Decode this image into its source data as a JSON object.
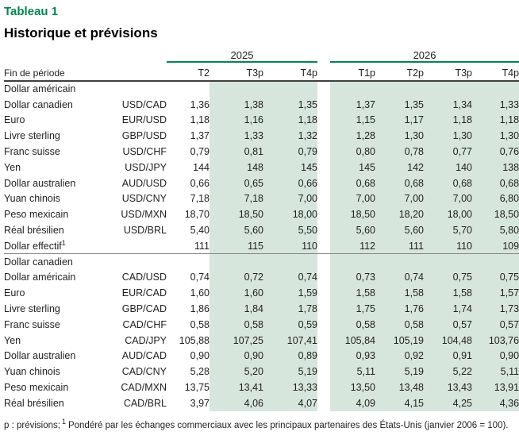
{
  "title": "Tableau 1",
  "subtitle": "Historique et prévisions",
  "table": {
    "corner_label": "Fin de période",
    "year_groups": [
      {
        "label": "2025"
      },
      {
        "label": "2026"
      }
    ],
    "quarter_headers": [
      "T2",
      "T3p",
      "T4p",
      "T1p",
      "T2p",
      "T3p",
      "T4p"
    ],
    "shaded_value_cols": [
      1,
      2,
      3,
      4,
      5,
      6
    ],
    "gap_after_col": 2,
    "sections": [
      {
        "header": "Dollar américain",
        "rows": [
          {
            "label": "Dollar canadien",
            "pair": "USD/CAD",
            "values": [
              "1,36",
              "1,38",
              "1,35",
              "1,37",
              "1,35",
              "1,34",
              "1,33"
            ]
          },
          {
            "label": "Euro",
            "pair": "EUR/USD",
            "values": [
              "1,18",
              "1,16",
              "1,18",
              "1,15",
              "1,17",
              "1,18",
              "1,18"
            ]
          },
          {
            "label": "Livre sterling",
            "pair": "GBP/USD",
            "values": [
              "1,37",
              "1,33",
              "1,32",
              "1,28",
              "1,30",
              "1,30",
              "1,30"
            ]
          },
          {
            "label": "Franc suisse",
            "pair": "USD/CHF",
            "values": [
              "0,79",
              "0,81",
              "0,79",
              "0,80",
              "0,78",
              "0,77",
              "0,76"
            ]
          },
          {
            "label": "Yen",
            "pair": "USD/JPY",
            "values": [
              "144",
              "148",
              "145",
              "145",
              "142",
              "140",
              "138"
            ]
          },
          {
            "label": "Dollar australien",
            "pair": "AUD/USD",
            "values": [
              "0,66",
              "0,65",
              "0,66",
              "0,68",
              "0,68",
              "0,68",
              "0,68"
            ]
          },
          {
            "label": "Yuan chinois",
            "pair": "USD/CNY",
            "values": [
              "7,18",
              "7,18",
              "7,00",
              "7,00",
              "7,00",
              "7,00",
              "6,80"
            ]
          },
          {
            "label": "Peso mexicain",
            "pair": "USD/MXN",
            "values": [
              "18,70",
              "18,50",
              "18,00",
              "18,50",
              "18,20",
              "18,00",
              "18,50"
            ]
          },
          {
            "label": "Réal brésilien",
            "pair": "USD/BRL",
            "values": [
              "5,40",
              "5,60",
              "5,50",
              "5,60",
              "5,60",
              "5,70",
              "5,80"
            ]
          },
          {
            "label": "Dollar effectif",
            "sup": "1",
            "pair": "",
            "values": [
              "111",
              "115",
              "110",
              "112",
              "111",
              "110",
              "109"
            ]
          }
        ]
      },
      {
        "header": "Dollar canadien",
        "rows": [
          {
            "label": "Dollar américain",
            "pair": "CAD/USD",
            "values": [
              "0,74",
              "0,72",
              "0,74",
              "0,73",
              "0,74",
              "0,75",
              "0,75"
            ]
          },
          {
            "label": "Euro",
            "pair": "EUR/CAD",
            "values": [
              "1,60",
              "1,60",
              "1,59",
              "1,58",
              "1,58",
              "1,58",
              "1,57"
            ]
          },
          {
            "label": "Livre sterling",
            "pair": "GBP/CAD",
            "values": [
              "1,86",
              "1,84",
              "1,78",
              "1,75",
              "1,76",
              "1,74",
              "1,73"
            ]
          },
          {
            "label": "Franc suisse",
            "pair": "CAD/CHF",
            "values": [
              "0,58",
              "0,58",
              "0,59",
              "0,58",
              "0,58",
              "0,57",
              "0,57"
            ]
          },
          {
            "label": "Yen",
            "pair": "CAD/JPY",
            "values": [
              "105,88",
              "107,25",
              "107,41",
              "105,84",
              "105,19",
              "104,48",
              "103,76"
            ]
          },
          {
            "label": "Dollar australien",
            "pair": "AUD/CAD",
            "values": [
              "0,90",
              "0,90",
              "0,89",
              "0,93",
              "0,92",
              "0,91",
              "0,90"
            ]
          },
          {
            "label": "Yuan chinois",
            "pair": "CAD/CNY",
            "values": [
              "5,28",
              "5,20",
              "5,19",
              "5,11",
              "5,19",
              "5,22",
              "5,11"
            ]
          },
          {
            "label": "Peso mexicain",
            "pair": "CAD/MXN",
            "values": [
              "13,75",
              "13,41",
              "13,33",
              "13,50",
              "13,48",
              "13,43",
              "13,91"
            ]
          },
          {
            "label": "Réal brésilien",
            "pair": "CAD/BRL",
            "values": [
              "3,97",
              "4,06",
              "4,07",
              "4,09",
              "4,15",
              "4,25",
              "4,36"
            ]
          }
        ]
      }
    ]
  },
  "footnote": {
    "prefix": "p : prévisions;",
    "sup": "1",
    "text": "Pondéré par les échanges commerciaux avec les principaux partenaires des États-Unis (janvier 2006 = 100)."
  },
  "colors": {
    "accent_green": "#00874E",
    "shade_green": "#D7E6DC",
    "header_border": "#3F3F3F",
    "section_border": "#858585"
  }
}
